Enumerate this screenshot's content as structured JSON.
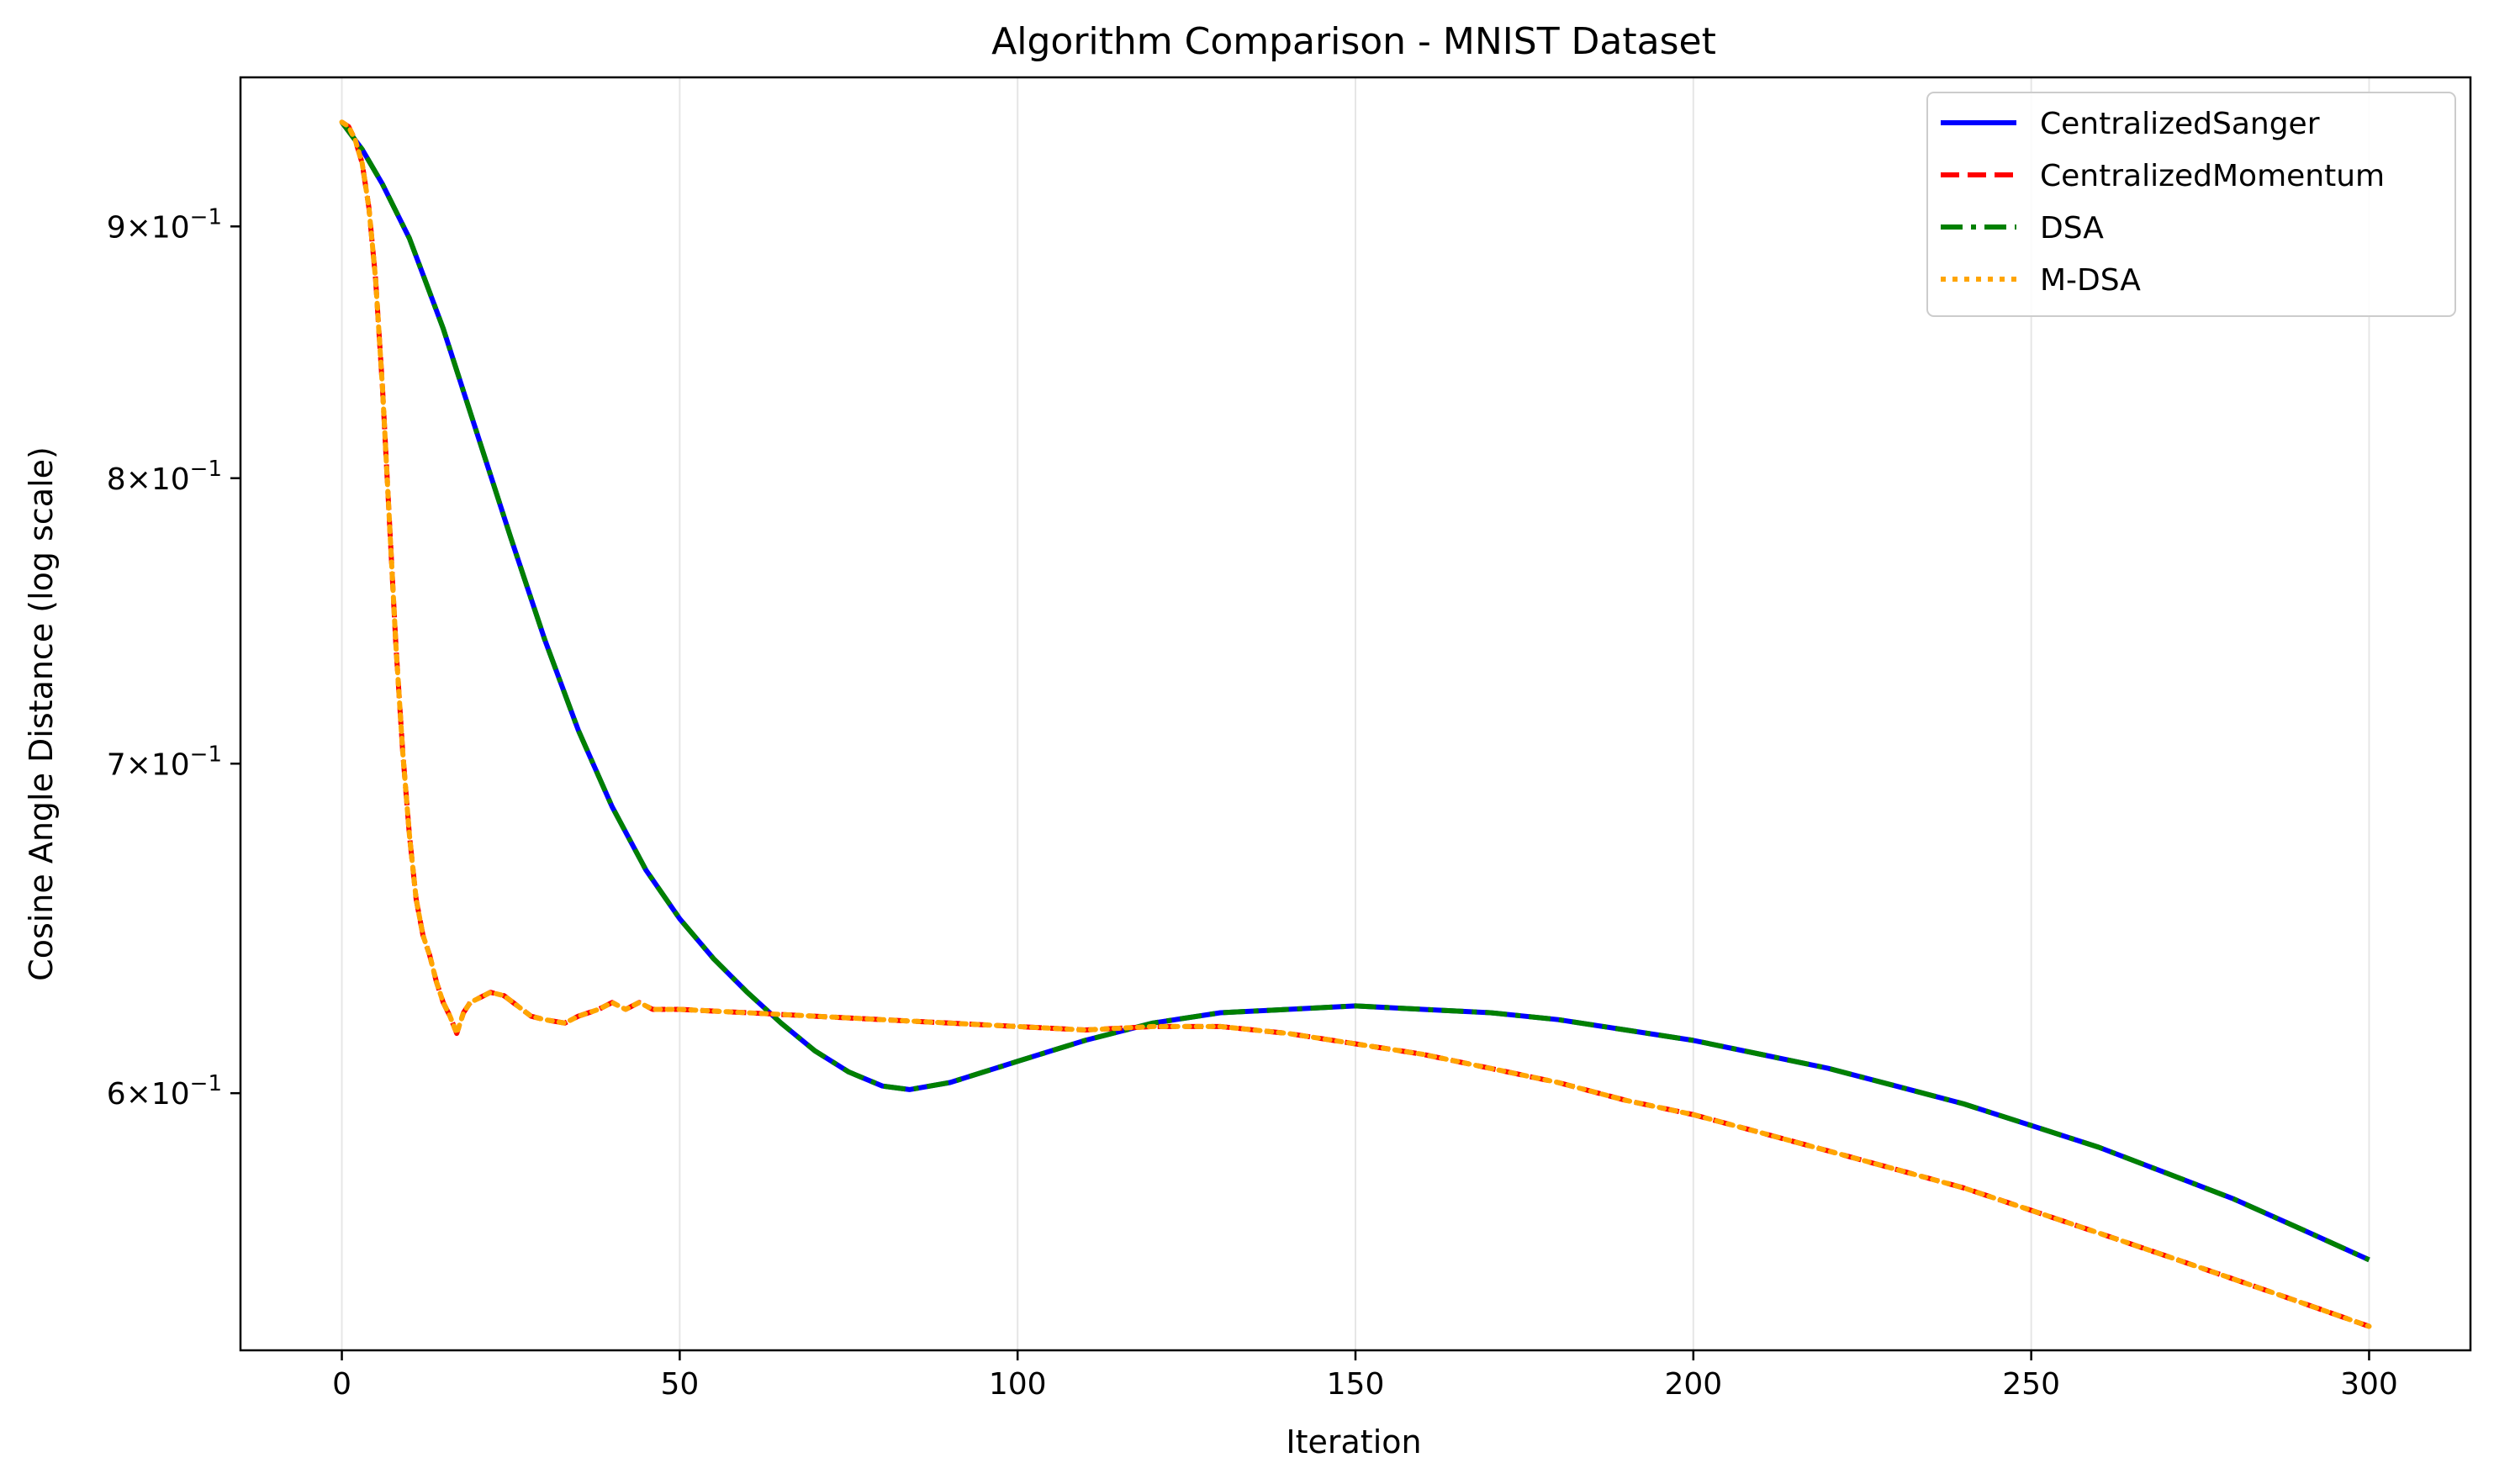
{
  "chart_data": {
    "type": "line",
    "title": "Algorithm Comparison - MNIST Dataset",
    "xlabel": "Iteration",
    "ylabel": "Cosine Angle Distance (log scale)",
    "xscale": "linear",
    "yscale": "log",
    "xlim": [
      -15,
      315
    ],
    "ylim": [
      0.532,
      0.965
    ],
    "grid": "x-major, light gray",
    "legend_position": "top-right",
    "xticks": [
      0,
      50,
      100,
      150,
      200,
      250,
      300
    ],
    "xtick_labels": [
      "0",
      "50",
      "100",
      "150",
      "200",
      "250",
      "300"
    ],
    "yticks": [
      0.6,
      0.7,
      0.8,
      0.9
    ],
    "ytick_labels": [
      {
        "mantissa": "6",
        "exp": "−1"
      },
      {
        "mantissa": "7",
        "exp": "−1"
      },
      {
        "mantissa": "8",
        "exp": "−1"
      },
      {
        "mantissa": "9",
        "exp": "−1"
      }
    ],
    "ytick_prefix": "×10",
    "series": [
      {
        "name": "CentralizedSanger",
        "color": "#0000ff",
        "style": "solid",
        "x": [
          0,
          3,
          6,
          10,
          15,
          20,
          25,
          30,
          35,
          40,
          45,
          50,
          55,
          60,
          65,
          70,
          75,
          80,
          84,
          90,
          95,
          100,
          105,
          110,
          120,
          130,
          140,
          150,
          160,
          170,
          180,
          190,
          200,
          210,
          220,
          230,
          240,
          250,
          260,
          270,
          280,
          290,
          300
        ],
        "y": [
          0.945,
          0.933,
          0.918,
          0.895,
          0.858,
          0.817,
          0.778,
          0.742,
          0.711,
          0.686,
          0.666,
          0.651,
          0.639,
          0.629,
          0.62,
          0.612,
          0.606,
          0.602,
          0.601,
          0.603,
          0.606,
          0.609,
          0.612,
          0.615,
          0.62,
          0.623,
          0.624,
          0.625,
          0.624,
          0.623,
          0.621,
          0.618,
          0.615,
          0.611,
          0.607,
          0.602,
          0.597,
          0.591,
          0.585,
          0.578,
          0.571,
          0.563,
          0.555
        ]
      },
      {
        "name": "CentralizedMomentum",
        "color": "#ff0000",
        "style": "dashed",
        "x": [
          0,
          1,
          2,
          3,
          4,
          5,
          6,
          7,
          8,
          9,
          10,
          11,
          12,
          13,
          14,
          15,
          16,
          17,
          18,
          19,
          20,
          22,
          24,
          26,
          28,
          30,
          33,
          35,
          38,
          40,
          42,
          44,
          46,
          50,
          60,
          70,
          80,
          90,
          100,
          110,
          120,
          130,
          140,
          150,
          160,
          170,
          180,
          190,
          200,
          210,
          220,
          230,
          240,
          250,
          260,
          270,
          280,
          290,
          300
        ],
        "y": [
          0.945,
          0.943,
          0.937,
          0.927,
          0.908,
          0.878,
          0.835,
          0.786,
          0.74,
          0.704,
          0.677,
          0.657,
          0.646,
          0.64,
          0.632,
          0.626,
          0.622,
          0.617,
          0.623,
          0.626,
          0.627,
          0.629,
          0.628,
          0.625,
          0.622,
          0.621,
          0.62,
          0.622,
          0.624,
          0.626,
          0.624,
          0.626,
          0.624,
          0.624,
          0.623,
          0.622,
          0.621,
          0.62,
          0.619,
          0.618,
          0.619,
          0.619,
          0.617,
          0.614,
          0.611,
          0.607,
          0.603,
          0.598,
          0.594,
          0.589,
          0.584,
          0.579,
          0.574,
          0.568,
          0.562,
          0.556,
          0.55,
          0.544,
          0.538
        ]
      },
      {
        "name": "DSA",
        "color": "#008000",
        "style": "dashdot",
        "x": [
          0,
          3,
          6,
          10,
          15,
          20,
          25,
          30,
          35,
          40,
          45,
          50,
          55,
          60,
          65,
          70,
          75,
          80,
          84,
          90,
          95,
          100,
          105,
          110,
          120,
          130,
          140,
          150,
          160,
          170,
          180,
          190,
          200,
          210,
          220,
          230,
          240,
          250,
          260,
          270,
          280,
          290,
          300
        ],
        "y": [
          0.945,
          0.933,
          0.918,
          0.895,
          0.858,
          0.817,
          0.778,
          0.742,
          0.711,
          0.686,
          0.666,
          0.651,
          0.639,
          0.629,
          0.62,
          0.612,
          0.606,
          0.602,
          0.601,
          0.603,
          0.606,
          0.609,
          0.612,
          0.615,
          0.62,
          0.623,
          0.624,
          0.625,
          0.624,
          0.623,
          0.621,
          0.618,
          0.615,
          0.611,
          0.607,
          0.602,
          0.597,
          0.591,
          0.585,
          0.578,
          0.571,
          0.563,
          0.555
        ]
      },
      {
        "name": "M-DSA",
        "color": "#ffa500",
        "style": "dotted",
        "x": [
          0,
          1,
          2,
          3,
          4,
          5,
          6,
          7,
          8,
          9,
          10,
          11,
          12,
          13,
          14,
          15,
          16,
          17,
          18,
          19,
          20,
          22,
          24,
          26,
          28,
          30,
          33,
          35,
          38,
          40,
          42,
          44,
          46,
          50,
          60,
          70,
          80,
          90,
          100,
          110,
          120,
          130,
          140,
          150,
          160,
          170,
          180,
          190,
          200,
          210,
          220,
          230,
          240,
          250,
          260,
          270,
          280,
          290,
          300
        ],
        "y": [
          0.945,
          0.943,
          0.937,
          0.927,
          0.908,
          0.878,
          0.835,
          0.786,
          0.74,
          0.704,
          0.677,
          0.657,
          0.646,
          0.64,
          0.632,
          0.626,
          0.622,
          0.617,
          0.623,
          0.626,
          0.627,
          0.629,
          0.628,
          0.625,
          0.622,
          0.621,
          0.62,
          0.622,
          0.624,
          0.626,
          0.624,
          0.626,
          0.624,
          0.624,
          0.623,
          0.622,
          0.621,
          0.62,
          0.619,
          0.618,
          0.619,
          0.619,
          0.617,
          0.614,
          0.611,
          0.607,
          0.603,
          0.598,
          0.594,
          0.589,
          0.584,
          0.579,
          0.574,
          0.568,
          0.562,
          0.556,
          0.55,
          0.544,
          0.538
        ]
      }
    ]
  }
}
